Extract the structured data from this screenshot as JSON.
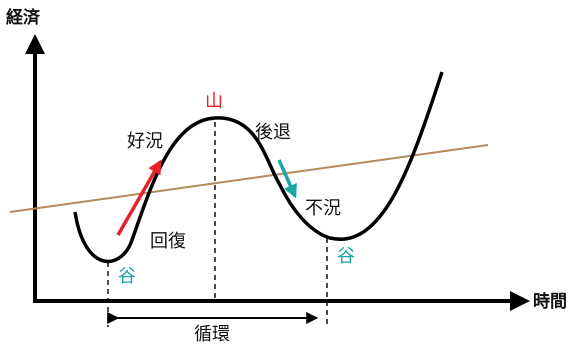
{
  "axes": {
    "y_label": "経済",
    "x_label": "時間"
  },
  "phases": {
    "peak": "山",
    "trough_left": "谷",
    "trough_right": "谷",
    "boom": "好況",
    "recession": "後退",
    "slump": "不況",
    "recovery": "回復"
  },
  "cycle_label": "循環",
  "colors": {
    "axis": "#000000",
    "curve": "#000000",
    "trend_line": "#b48a5c",
    "peak_label": "#e8202a",
    "trough_label": "#1aa6a3",
    "boom_arrow": "#e8202a",
    "recession_arrow": "#1aa6a3",
    "text": "#111111"
  }
}
